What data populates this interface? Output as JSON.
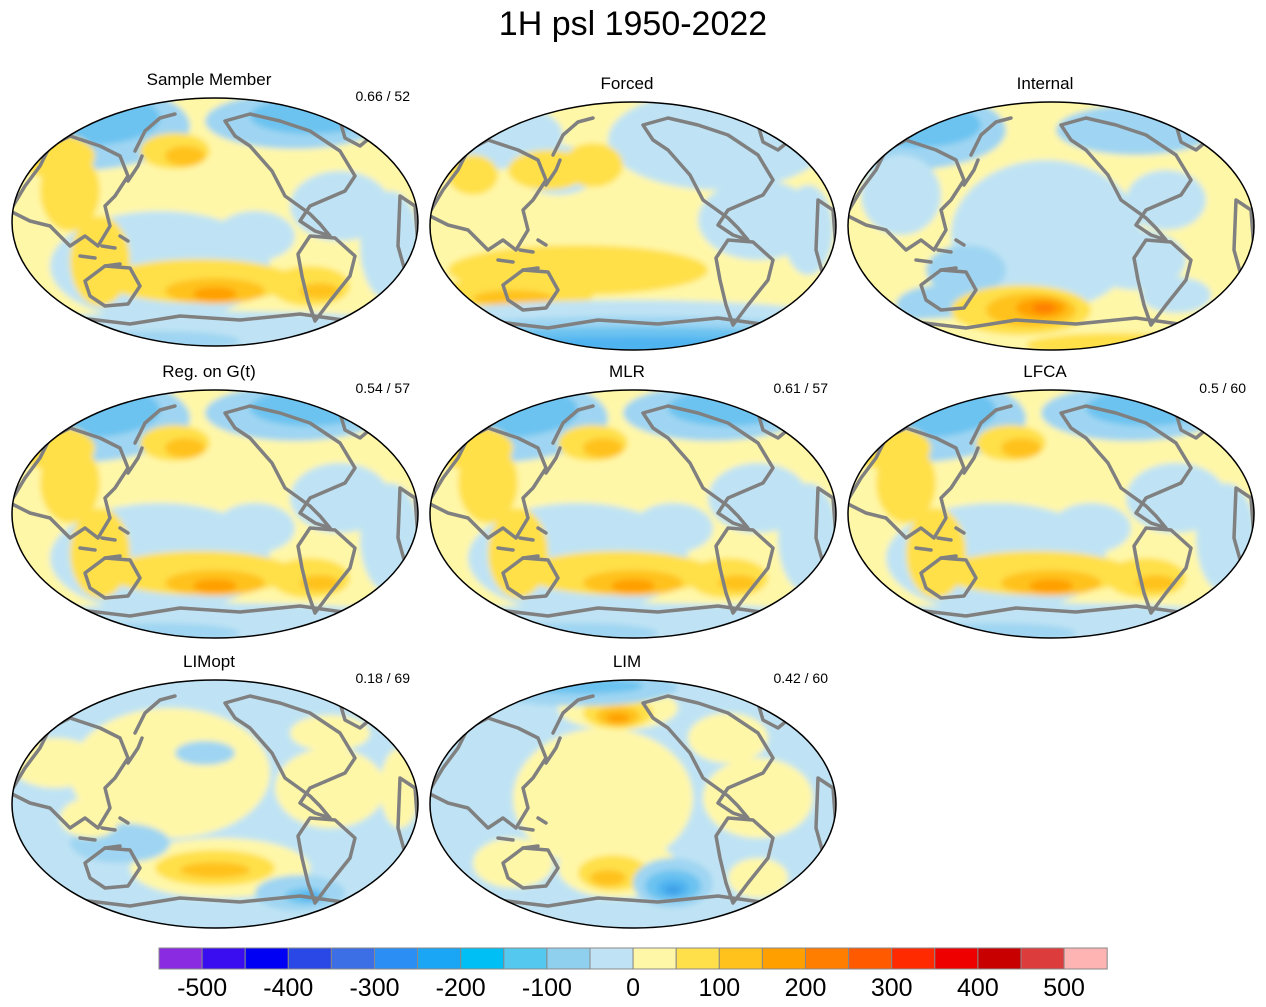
{
  "title": "1H psl 1950-2022",
  "panels": [
    {
      "id": "sample",
      "label": "Sample Member",
      "stat": "0.66 / 52",
      "pattern": "sample"
    },
    {
      "id": "forced",
      "label": "Forced",
      "stat": "",
      "pattern": "forced"
    },
    {
      "id": "internal",
      "label": "Internal",
      "stat": "",
      "pattern": "internal"
    },
    {
      "id": "reg",
      "label": "Reg. on G(t)",
      "stat": "0.54 / 57",
      "pattern": "sample"
    },
    {
      "id": "mlr",
      "label": "MLR",
      "stat": "0.61 / 57",
      "pattern": "sample"
    },
    {
      "id": "lfca",
      "label": "LFCA",
      "stat": "0.5 / 60",
      "pattern": "sample"
    },
    {
      "id": "limopt",
      "label": "LIMopt",
      "stat": "0.18 / 69",
      "pattern": "limopt"
    },
    {
      "id": "lim",
      "label": "LIM",
      "stat": "0.42 / 60",
      "pattern": "lim"
    }
  ],
  "colorbar": {
    "ticks": [
      "-500",
      "-400",
      "-300",
      "-200",
      "-100",
      "0",
      "100",
      "200",
      "300",
      "400",
      "500"
    ],
    "colors": [
      "#8a2be2",
      "#3a0cf0",
      "#0000f5",
      "#2a48e6",
      "#3c6fe6",
      "#2a8ef5",
      "#1aa5f5",
      "#00bff5",
      "#55c8f0",
      "#8fd0ee",
      "#bfe3f4",
      "#fff7a8",
      "#ffe04a",
      "#ffc21c",
      "#ffa000",
      "#ff7e00",
      "#ff5a00",
      "#ff2a00",
      "#ee0000",
      "#c80000",
      "#dc3c3c",
      "#ffb4b4"
    ]
  },
  "chart_data": {
    "type": "heatmap",
    "title": "1H psl 1950-2022",
    "projection": "Pacific-centred global ellipse",
    "legend": "bottom",
    "vrange": [
      -550,
      550
    ],
    "contour_interval": 50,
    "panels": [
      "Sample Member",
      "Forced",
      "Internal",
      "Reg. on G(t)",
      "MLR",
      "LFCA",
      "LIMopt",
      "LIM"
    ],
    "panel_stats": {
      "Sample Member": "0.66 / 52",
      "Reg. on G(t)": "0.54 / 57",
      "MLR": "0.61 / 57",
      "LFCA": "0.5 / 60",
      "LIMopt": "0.18 / 69",
      "LIM": "0.42 / 60"
    },
    "colorbar_ticks": [
      -500,
      -400,
      -300,
      -200,
      -100,
      0,
      100,
      200,
      300,
      400,
      500
    ]
  }
}
